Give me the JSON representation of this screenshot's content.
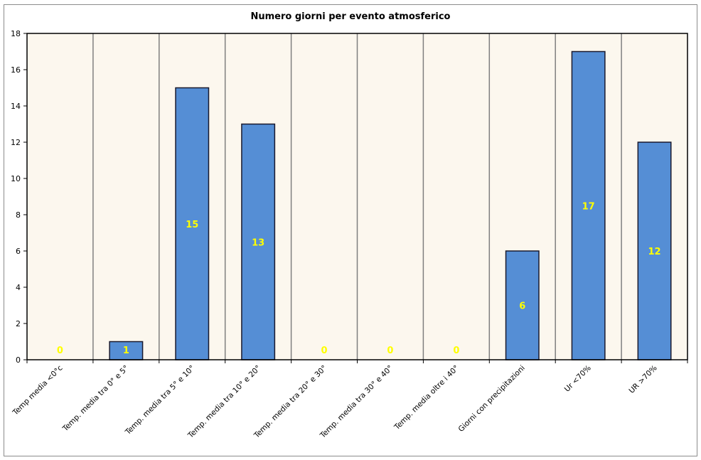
{
  "chart_data": {
    "type": "bar",
    "title": "Numero giorni per evento atmosferico",
    "xlabel": "",
    "ylabel": "",
    "categories": [
      "Temp media <0°c",
      "Temp. media tra 0° e 5°",
      "Temp. media tra 5° e 10°",
      "Temp. media tra 10° e 20°",
      "Temp. media tra 20° e 30°",
      "Temp. media tra 30° e 40°",
      "Temp. media oltre i 40°",
      "Giorni con precipitazioni",
      "Ur <70%",
      "UR >70%"
    ],
    "values": [
      0,
      1,
      15,
      13,
      0,
      0,
      0,
      6,
      17,
      12
    ],
    "ylim": [
      0,
      18
    ],
    "yticks": [
      0,
      2,
      4,
      6,
      8,
      10,
      12,
      14,
      16,
      18
    ],
    "grid": "vertical",
    "legend": "none",
    "colors": {
      "bar": "#558ed5",
      "bar_stroke": "#1a1a2e",
      "plot_background": "#fcf7ee",
      "data_label": "#ffff00",
      "grid": "#7f7f7f"
    }
  }
}
